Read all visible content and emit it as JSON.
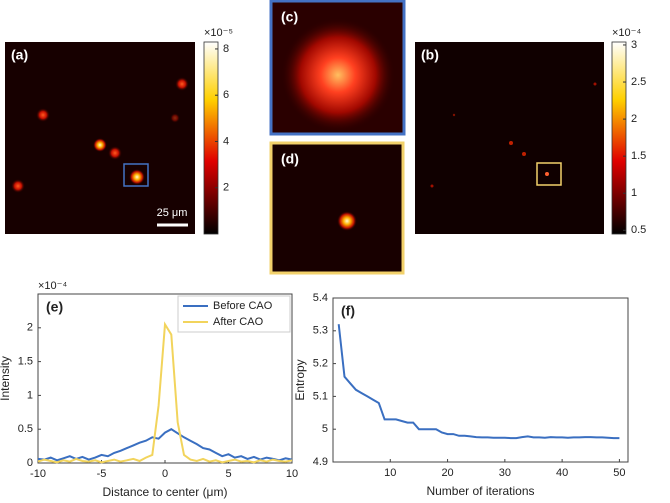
{
  "chart_data": [
    {
      "type": "heatmap",
      "label": "(a)",
      "scale_bar": "25 μm",
      "multiplier": "×10⁻⁵",
      "ylim": [
        0,
        8.3
      ],
      "yticks": [
        2,
        4,
        6,
        8
      ]
    },
    {
      "type": "image",
      "label": "(c)",
      "color": "#4472c4"
    },
    {
      "type": "image",
      "label": "(d)",
      "color": "#f2d16b"
    },
    {
      "type": "heatmap",
      "label": "(b)",
      "multiplier": "×10⁻⁴",
      "ylim": [
        0.45,
        3.04
      ],
      "yticks": [
        0.5,
        1,
        1.5,
        2,
        2.5,
        3
      ]
    },
    {
      "type": "line",
      "label": "(e)",
      "xlabel": "Distance to center (μm)",
      "ylabel": "Intensity",
      "multiplier": "×10⁻⁴",
      "xlim": [
        -10,
        10
      ],
      "xticks": [
        -10,
        -5,
        0,
        5,
        10
      ],
      "ylim": [
        0,
        2.5
      ],
      "yticks": [
        0,
        0.5,
        1,
        1.5,
        2
      ],
      "legend": "upper right",
      "x": [
        -10,
        -9.5,
        -9,
        -8.5,
        -8,
        -7.5,
        -7,
        -6.5,
        -6,
        -5.5,
        -5,
        -4.5,
        -4,
        -3.5,
        -3,
        -2.5,
        -2,
        -1.5,
        -1,
        -0.5,
        0,
        0.5,
        1,
        1.5,
        2,
        2.5,
        3,
        3.5,
        4,
        4.5,
        5,
        5.5,
        6,
        6.5,
        7,
        7.5,
        8,
        8.5,
        9,
        9.5,
        10
      ],
      "series": [
        {
          "name": "Before CAO",
          "color": "#3a6fc1",
          "values": [
            0.06,
            0.05,
            0.08,
            0.04,
            0.07,
            0.1,
            0.06,
            0.09,
            0.05,
            0.08,
            0.12,
            0.1,
            0.15,
            0.18,
            0.22,
            0.26,
            0.3,
            0.33,
            0.38,
            0.36,
            0.45,
            0.5,
            0.44,
            0.38,
            0.33,
            0.28,
            0.22,
            0.2,
            0.15,
            0.1,
            0.13,
            0.08,
            0.1,
            0.06,
            0.09,
            0.05,
            0.08,
            0.06,
            0.04,
            0.07,
            0.05
          ]
        },
        {
          "name": "After CAO",
          "color": "#f2d45c",
          "values": [
            0.02,
            0.05,
            0.03,
            0.01,
            0.04,
            0.02,
            0.06,
            0.03,
            0.02,
            0.04,
            0.01,
            0.03,
            0.05,
            0.02,
            0.04,
            0.06,
            0.03,
            0.08,
            0.12,
            0.85,
            2.05,
            1.9,
            0.6,
            0.12,
            0.05,
            0.03,
            0.06,
            0.02,
            0.04,
            0.01,
            0.03,
            0.05,
            0.02,
            0.03,
            0.01,
            0.04,
            0.02,
            0.05,
            0.03,
            0.02,
            0.04
          ]
        }
      ]
    },
    {
      "type": "line",
      "label": "(f)",
      "xlabel": "Number of iterations",
      "ylabel": "Entropy",
      "xlim": [
        0,
        51.5
      ],
      "xticks": [
        10,
        20,
        30,
        40,
        50
      ],
      "ylim": [
        4.9,
        5.4
      ],
      "yticks": [
        4.9,
        5,
        5.1,
        5.2,
        5.3,
        5.4
      ],
      "x": [
        1,
        2,
        3,
        4,
        5,
        6,
        7,
        8,
        9,
        10,
        11,
        12,
        13,
        14,
        15,
        16,
        17,
        18,
        19,
        20,
        21,
        22,
        23,
        24,
        25,
        26,
        27,
        28,
        29,
        30,
        31,
        32,
        33,
        34,
        35,
        36,
        37,
        38,
        39,
        40,
        41,
        42,
        43,
        44,
        45,
        46,
        47,
        48,
        49,
        50
      ],
      "series": [
        {
          "name": "Entropy",
          "color": "#3a6fc1",
          "values": [
            5.32,
            5.16,
            5.14,
            5.12,
            5.11,
            5.1,
            5.09,
            5.08,
            5.03,
            5.03,
            5.03,
            5.025,
            5.02,
            5.02,
            5.0,
            5.0,
            5.0,
            5.0,
            4.99,
            4.985,
            4.985,
            4.98,
            4.98,
            4.978,
            4.976,
            4.975,
            4.975,
            4.974,
            4.974,
            4.974,
            4.973,
            4.973,
            4.976,
            4.978,
            4.975,
            4.975,
            4.974,
            4.976,
            4.975,
            4.975,
            4.974,
            4.975,
            4.975,
            4.976,
            4.976,
            4.975,
            4.975,
            4.974,
            4.973,
            4.973
          ]
        }
      ]
    }
  ]
}
